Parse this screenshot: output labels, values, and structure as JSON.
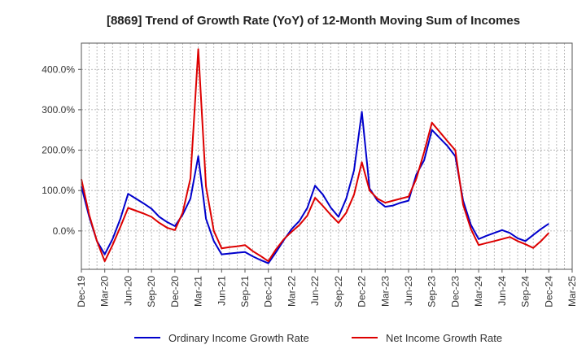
{
  "chart_data": {
    "type": "line",
    "title": "[8869]  Trend of Growth Rate (YoY) of 12-Month Moving Sum of Incomes",
    "xlabel": "",
    "ylabel": "",
    "x_tick_labels": [
      "Dec-19",
      "Mar-20",
      "Jun-20",
      "Sep-20",
      "Dec-20",
      "Mar-21",
      "Jun-21",
      "Sep-21",
      "Dec-21",
      "Mar-22",
      "Jun-22",
      "Sep-22",
      "Dec-22",
      "Mar-23",
      "Jun-23",
      "Sep-23",
      "Dec-23",
      "Mar-24",
      "Jun-24",
      "Sep-24",
      "Dec-24",
      "Mar-25"
    ],
    "y_ticks": [
      0,
      100,
      200,
      300,
      400
    ],
    "y_tick_labels": [
      "0.0%",
      "100.0%",
      "200.0%",
      "300.0%",
      "400.0%"
    ],
    "ylim": [
      -95,
      465
    ],
    "grid": true,
    "legend_position": "bottom",
    "x_months": [
      0,
      1,
      2,
      3,
      4,
      5,
      6,
      7,
      8,
      9,
      10,
      11,
      12,
      13,
      14,
      15,
      16,
      17,
      18,
      19,
      20,
      21,
      22,
      23,
      24,
      25,
      26,
      27,
      28,
      29,
      30,
      31,
      32,
      33,
      34,
      35,
      36,
      37,
      38,
      39,
      40,
      41,
      42,
      43,
      44,
      45,
      46,
      47,
      48,
      49,
      50,
      51,
      52,
      53,
      54,
      55,
      56,
      57,
      58,
      59,
      60
    ],
    "series": [
      {
        "name": "Ordinary Income Growth Rate",
        "color": "#0000cc",
        "values": [
          110,
          35,
          -25,
          -58,
          -20,
          30,
          92,
          80,
          68,
          55,
          35,
          22,
          12,
          40,
          80,
          185,
          30,
          -25,
          -58,
          -56,
          -54,
          -52,
          -63,
          -72,
          -80,
          -52,
          -22,
          5,
          25,
          57,
          112,
          90,
          58,
          35,
          80,
          150,
          295,
          105,
          75,
          60,
          63,
          70,
          75,
          140,
          175,
          250,
          230,
          210,
          185,
          75,
          15,
          -20,
          -12,
          -5,
          2,
          -5,
          -18,
          -25,
          -10,
          5,
          18
        ],
        "hidden_segments": []
      },
      {
        "name": "Net Income Growth Rate",
        "color": "#dd0000",
        "values": [
          128,
          40,
          -25,
          -75,
          -35,
          10,
          57,
          50,
          43,
          35,
          20,
          8,
          2,
          45,
          130,
          450,
          110,
          0,
          -43,
          -40,
          -38,
          -35,
          -50,
          -62,
          -75,
          -45,
          -20,
          -2,
          15,
          38,
          82,
          62,
          40,
          20,
          45,
          90,
          170,
          100,
          80,
          70,
          75,
          80,
          85,
          130,
          195,
          268,
          245,
          222,
          200,
          65,
          5,
          -35,
          -30,
          -25,
          -20,
          -15,
          -25,
          -33,
          -42,
          -25,
          -5
        ],
        "hidden_segments": []
      }
    ]
  }
}
